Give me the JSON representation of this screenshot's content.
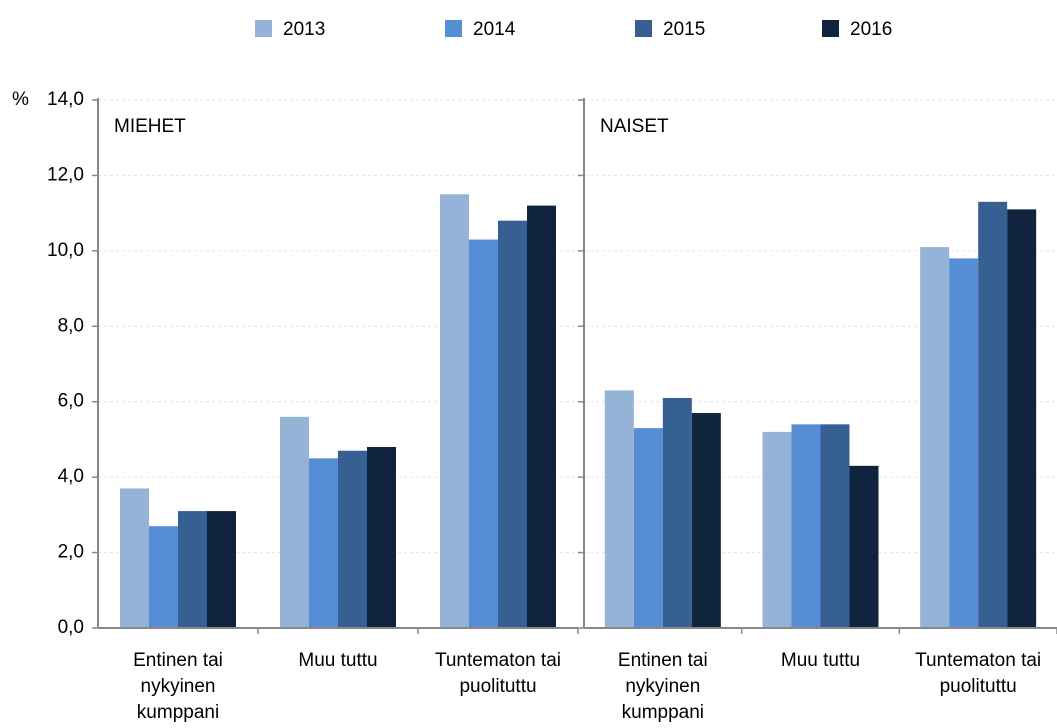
{
  "chart_data": [
    {
      "type": "bar",
      "title": "MIEHET",
      "ylabel": "%",
      "categories": [
        "Entinen tai nykyinen kumppani",
        "Muu tuttu",
        "Tuntematon tai puolituttu"
      ],
      "series": [
        {
          "name": "2013",
          "color": "#95b3d7",
          "values": [
            3.7,
            5.6,
            11.5
          ]
        },
        {
          "name": "2014",
          "color": "#558ed5",
          "values": [
            2.7,
            4.5,
            10.3
          ]
        },
        {
          "name": "2015",
          "color": "#376092",
          "values": [
            3.1,
            4.7,
            10.8
          ]
        },
        {
          "name": "2016",
          "color": "#10243e",
          "values": [
            3.1,
            4.8,
            11.2
          ]
        }
      ],
      "ylim": [
        0,
        14
      ],
      "yticks": [
        {
          "value": 0,
          "label": "0,0"
        },
        {
          "value": 2,
          "label": "2,0"
        },
        {
          "value": 4,
          "label": "4,0"
        },
        {
          "value": 6,
          "label": "6,0"
        },
        {
          "value": 8,
          "label": "8,0"
        },
        {
          "value": 10,
          "label": "10,0"
        },
        {
          "value": 12,
          "label": "12,0"
        },
        {
          "value": 14,
          "label": "14,0"
        }
      ],
      "grid": true,
      "legend": "top"
    },
    {
      "type": "bar",
      "title": "NAISET",
      "categories": [
        "Entinen tai nykyinen kumppani",
        "Muu tuttu",
        "Tuntematon tai puolituttu"
      ],
      "series": [
        {
          "color": "#95b3d7",
          "values": [
            6.3,
            5.2,
            10.1
          ]
        },
        {
          "color": "#558ed5",
          "values": [
            5.3,
            5.4,
            9.8
          ]
        },
        {
          "color": "#376092",
          "values": [
            6.1,
            5.4,
            11.3
          ]
        },
        {
          "color": "#10243e",
          "values": [
            5.7,
            4.3,
            11.1
          ]
        }
      ],
      "ylim": [
        0,
        14
      ],
      "yticks": [
        0,
        2,
        4,
        6,
        8,
        10,
        12,
        14
      ],
      "grid": true
    }
  ]
}
